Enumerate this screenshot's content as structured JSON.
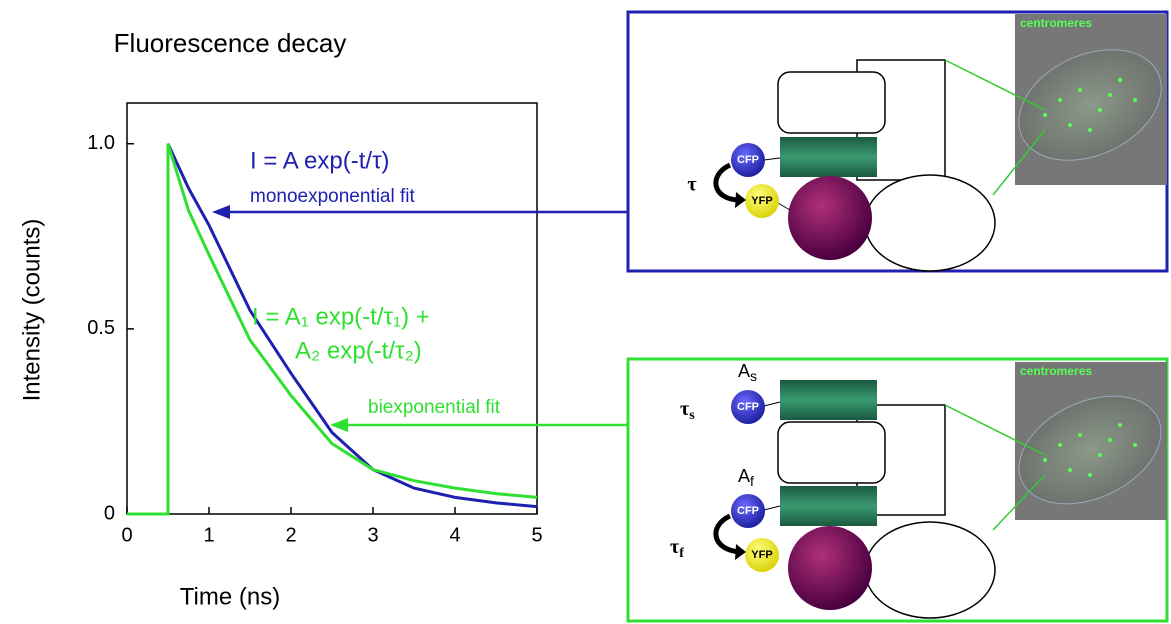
{
  "chart_data": {
    "type": "line",
    "title": "Fluorescence decay",
    "xlabel": "Time (ns)",
    "ylabel": "Intensity (counts)",
    "x": [
      0,
      0.5,
      0.5,
      0.75,
      1,
      1.5,
      2,
      2.5,
      3,
      3.5,
      4,
      4.5,
      5
    ],
    "series": [
      {
        "name": "monoexponential fit",
        "color": "#2020b0",
        "values": [
          0,
          0,
          1,
          0.88,
          0.78,
          0.55,
          0.38,
          0.22,
          0.12,
          0.07,
          0.045,
          0.03,
          0.02
        ]
      },
      {
        "name": "biexponential fit",
        "color": "#30e030",
        "values": [
          0,
          0,
          1,
          0.82,
          0.7,
          0.47,
          0.32,
          0.19,
          0.12,
          0.09,
          0.07,
          0.055,
          0.045
        ]
      }
    ],
    "annotations": [
      "I = A exp(-t/τ)",
      "I = A₁ exp(-t/τ₁) +",
      "A₂ exp(-t/τ₂)"
    ],
    "xlim": [
      0,
      5
    ],
    "ylim": [
      0,
      1.11
    ],
    "xticks": [
      0,
      1,
      2,
      3,
      4,
      5
    ],
    "yticks": [
      0,
      0.5,
      {
        "value": 1,
        "label": "1.0"
      }
    ]
  },
  "diagram": {
    "top": {
      "cfp": "CFP",
      "yfp": "YFP",
      "tau": "τ",
      "micrograph": "centromeres"
    },
    "bottom": {
      "cfp_s": "CFP",
      "cfp_f": "CFP",
      "yfp": "YFP",
      "tau_s": {
        "base": "τ",
        "sub": "s"
      },
      "tau_f": {
        "base": "τ",
        "sub": "f"
      },
      "a_s": {
        "base": "A",
        "sub": "s"
      },
      "a_f": {
        "base": "A",
        "sub": "f"
      },
      "micrograph": "centromeres"
    }
  }
}
